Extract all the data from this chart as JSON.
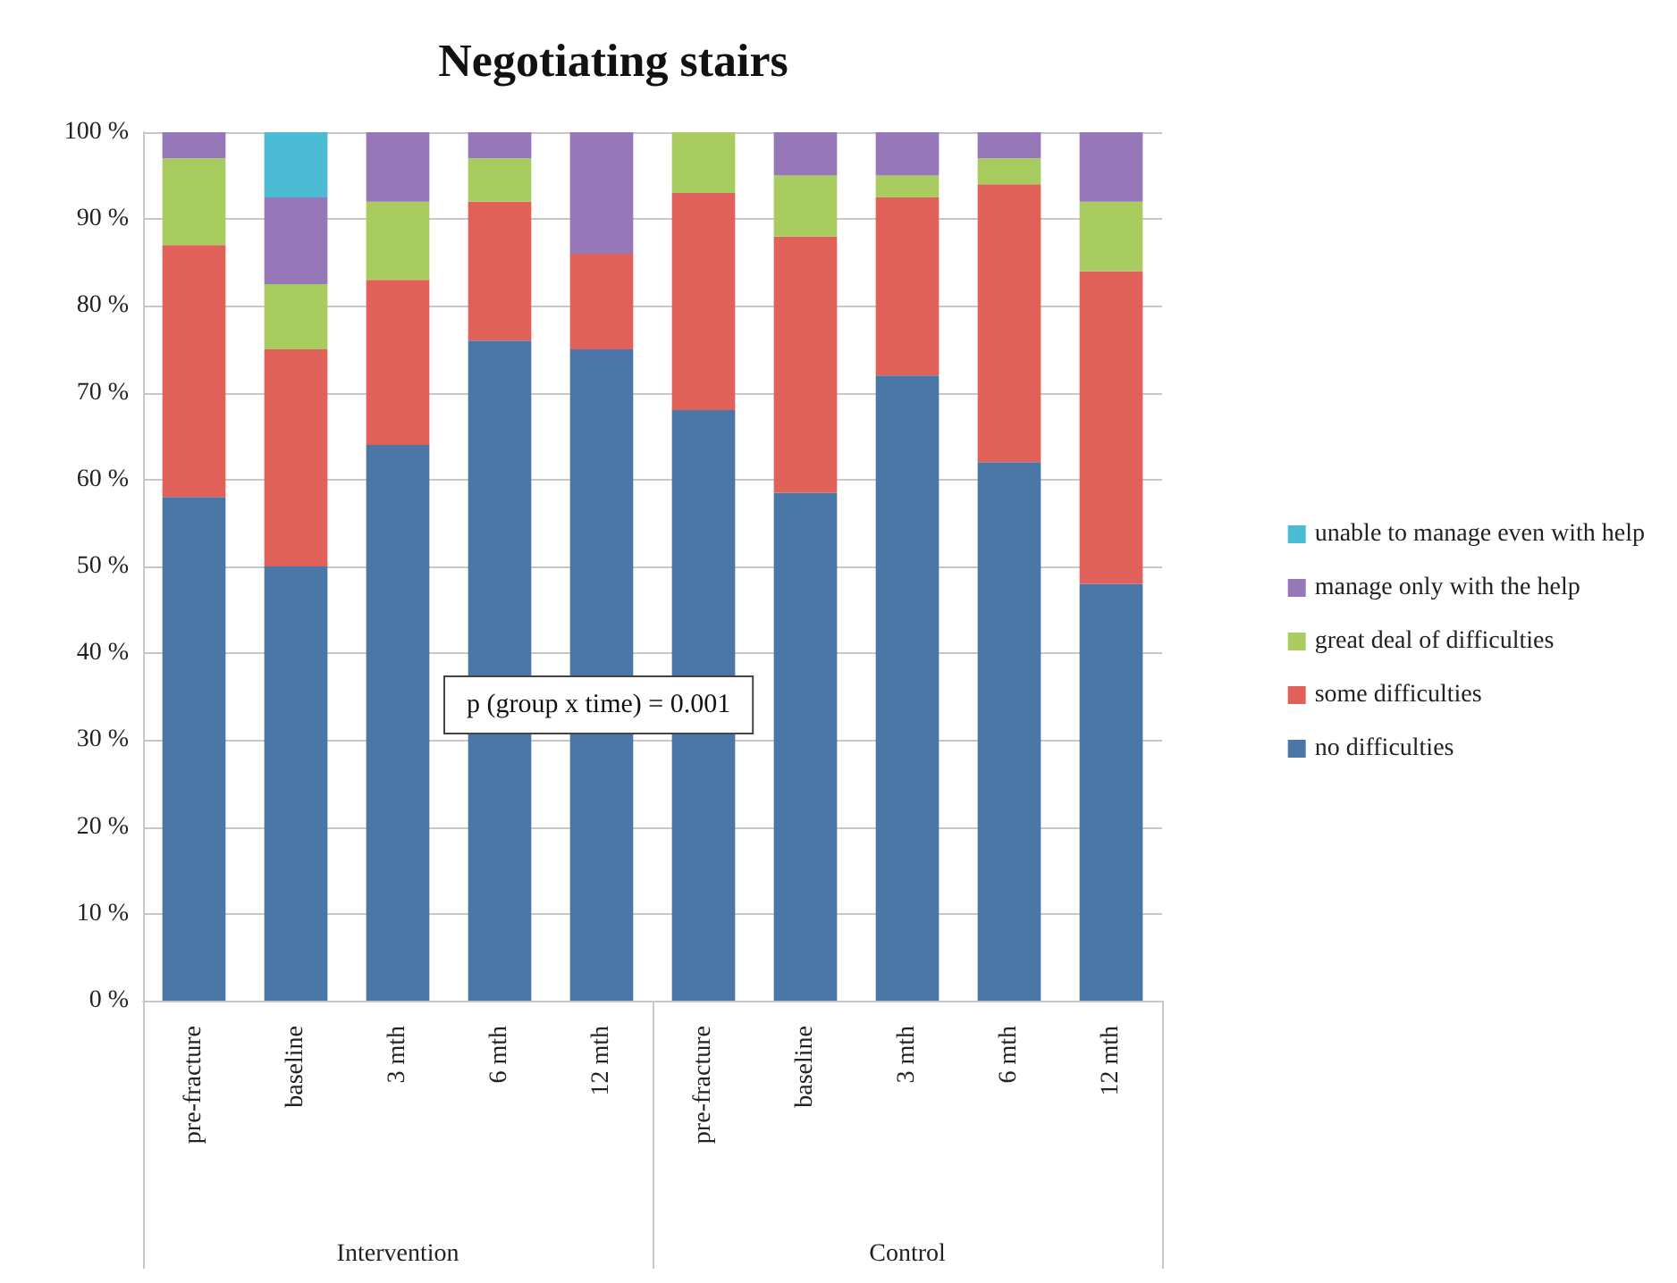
{
  "chart_data": {
    "type": "bar",
    "title": "Negotiating stairs",
    "stacked": true,
    "categories": [
      "pre-fracture",
      "baseline",
      "3 mth",
      "6 mth",
      "12 mth",
      "pre-fracture",
      "baseline",
      "3 mth",
      "6 mth",
      "12 mth"
    ],
    "series": [
      {
        "name": "no difficulties",
        "color": "#4a76a8",
        "values": [
          58,
          50,
          64,
          76,
          75,
          68,
          58.5,
          72,
          62,
          48
        ]
      },
      {
        "name": "some difficulties",
        "color": "#e0605a",
        "values": [
          29,
          25,
          19,
          16,
          11,
          25,
          29.5,
          20.5,
          32,
          36
        ]
      },
      {
        "name": "great deal of difficulties",
        "color": "#a8cc60",
        "values": [
          10,
          7.5,
          9,
          5,
          0,
          7,
          7,
          2.5,
          3,
          8
        ]
      },
      {
        "name": "manage only with the help",
        "color": "#9677b8",
        "values": [
          3,
          10,
          8,
          3,
          14,
          0,
          5,
          5,
          3,
          8
        ]
      },
      {
        "name": "unable to manage even with help",
        "color": "#4bbcd4",
        "values": [
          0,
          7.5,
          0,
          0,
          0,
          0,
          0,
          0,
          0,
          0
        ]
      }
    ],
    "ylim": [
      0,
      100
    ],
    "yticks": [
      {
        "value": 0,
        "label": "0 %"
      },
      {
        "value": 10,
        "label": "10 %"
      },
      {
        "value": 20,
        "label": "20 %"
      },
      {
        "value": 30,
        "label": "30 %"
      },
      {
        "value": 40,
        "label": "40 %"
      },
      {
        "value": 50,
        "label": "50 %"
      },
      {
        "value": 60,
        "label": "60 %"
      },
      {
        "value": 70,
        "label": "70 %"
      },
      {
        "value": 80,
        "label": "80 %"
      },
      {
        "value": 90,
        "label": "90 %"
      },
      {
        "value": 100,
        "label": "100 %"
      }
    ],
    "grid": "y",
    "legend": "right",
    "annotations": [
      "p (group x time) = 0.001",
      "Intervention",
      "Control"
    ]
  }
}
